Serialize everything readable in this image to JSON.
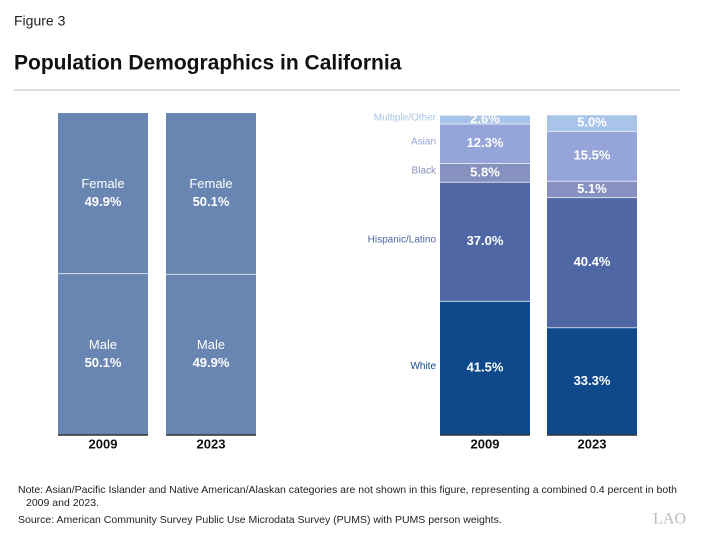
{
  "figure_label": "Figure 3",
  "title": "Population Demographics in California",
  "chart_data": [
    {
      "type": "stacked_bar",
      "series_labels": "inside",
      "categories": [
        "2009",
        "2023"
      ],
      "series": [
        {
          "name": "Male",
          "color": "#6886b1",
          "values": [
            50.1,
            49.9
          ],
          "value_labels": [
            "50.1%",
            "49.9%"
          ]
        },
        {
          "name": "Female",
          "color": "#6886b1",
          "values": [
            49.9,
            50.1
          ],
          "value_labels": [
            "49.9%",
            "50.1%"
          ]
        }
      ]
    },
    {
      "type": "stacked_bar",
      "series_labels": "left",
      "categories": [
        "2009",
        "2023"
      ],
      "series": [
        {
          "name": "White",
          "color": "#0e4a8b",
          "values": [
            41.5,
            33.3
          ],
          "value_labels": [
            "41.5%",
            "33.3%"
          ]
        },
        {
          "name": "Hispanic/Latino",
          "color": "#4f67a4",
          "values": [
            37.0,
            40.4
          ],
          "value_labels": [
            "37.0%",
            "40.4%"
          ]
        },
        {
          "name": "Black",
          "color": "#8791bf",
          "values": [
            5.8,
            5.1
          ],
          "value_labels": [
            "5.8%",
            "5.1%"
          ]
        },
        {
          "name": "Asian",
          "color": "#95a4d9",
          "values": [
            12.3,
            15.5
          ],
          "value_labels": [
            "12.3%",
            "15.5%"
          ]
        },
        {
          "name": "Multiple/Other",
          "color": "#a9c4e9",
          "values": [
            2.6,
            5.0
          ],
          "value_labels": [
            "2.6%",
            "5.0%"
          ]
        }
      ]
    }
  ],
  "note": "Note: Asian/Pacific Islander and Native American/Alaskan categories are not shown in this figure, representing a combined 0.4 percent in both 2009 and 2023.",
  "source": "Source: American Community Survey Public Use Microdata Survey (PUMS) with PUMS person weights.",
  "logo": "LAO"
}
